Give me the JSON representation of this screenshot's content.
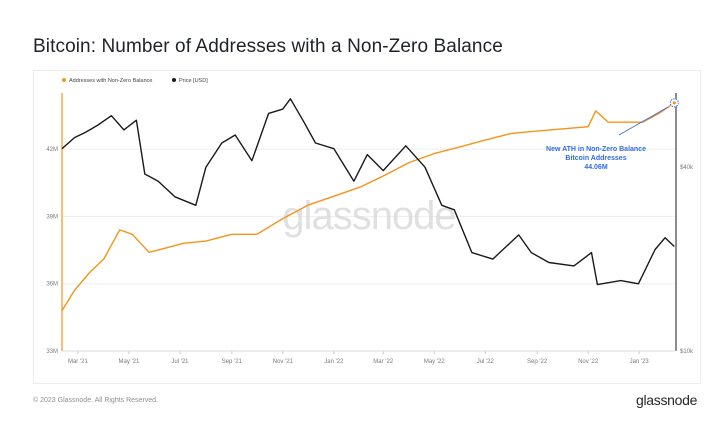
{
  "title": "Bitcoin: Number of Addresses with a Non-Zero Balance",
  "footer": {
    "copyright": "© 2023 Glassnode. All Rights Reserved.",
    "logo": "glassnode"
  },
  "watermark": "glassnode",
  "colors": {
    "addresses": "#f7931a",
    "price": "#1a1a1a",
    "annotation": "#2f6be0",
    "grid": "#ededed",
    "axis_text": "#7a7a7a"
  },
  "chart_data": {
    "type": "line",
    "x_ticks": [
      "Mar '21",
      "May '21",
      "Jul '21",
      "Sep '21",
      "Nov '21",
      "Jan '22",
      "Mar '22",
      "May '22",
      "Jul '22",
      "Sep '22",
      "Nov '22",
      "Jan '23"
    ],
    "y_left": {
      "ticks": [
        "33M",
        "36M",
        "39M",
        "42M"
      ],
      "range": [
        33,
        44.5
      ],
      "unit": "M"
    },
    "y_right": {
      "ticks": [
        "$10k",
        "$40k"
      ],
      "scale": "log",
      "range": [
        10000,
        70000
      ]
    },
    "legend": [
      "Addresses with Non-Zero Balance",
      "Price [USD]"
    ],
    "legend_position": "top-left",
    "grid": true,
    "series": [
      {
        "name": "Addresses with Non-Zero Balance",
        "axis": "left",
        "points": [
          [
            "2021-02-10",
            34.8
          ],
          [
            "2021-02-25",
            35.7
          ],
          [
            "2021-03-15",
            36.5
          ],
          [
            "2021-04-01",
            37.1
          ],
          [
            "2021-04-20",
            38.4
          ],
          [
            "2021-05-05",
            38.2
          ],
          [
            "2021-05-25",
            37.4
          ],
          [
            "2021-06-15",
            37.6
          ],
          [
            "2021-07-05",
            37.8
          ],
          [
            "2021-08-01",
            37.9
          ],
          [
            "2021-09-01",
            38.2
          ],
          [
            "2021-10-01",
            38.2
          ],
          [
            "2021-11-01",
            38.9
          ],
          [
            "2021-12-01",
            39.5
          ],
          [
            "2022-01-01",
            39.9
          ],
          [
            "2022-02-01",
            40.3
          ],
          [
            "2022-03-01",
            40.8
          ],
          [
            "2022-04-01",
            41.4
          ],
          [
            "2022-05-01",
            41.8
          ],
          [
            "2022-06-01",
            42.1
          ],
          [
            "2022-07-01",
            42.4
          ],
          [
            "2022-08-01",
            42.7
          ],
          [
            "2022-09-01",
            42.8
          ],
          [
            "2022-10-01",
            42.9
          ],
          [
            "2022-11-01",
            43.0
          ],
          [
            "2022-11-10",
            43.7
          ],
          [
            "2022-11-25",
            43.2
          ],
          [
            "2022-12-15",
            43.2
          ],
          [
            "2023-01-05",
            43.2
          ],
          [
            "2023-01-25",
            43.6
          ],
          [
            "2023-02-12",
            44.06
          ]
        ]
      },
      {
        "name": "Price [USD]",
        "axis": "right",
        "points": [
          [
            "2021-02-10",
            46000
          ],
          [
            "2021-02-25",
            50000
          ],
          [
            "2021-03-10",
            52000
          ],
          [
            "2021-03-25",
            55000
          ],
          [
            "2021-04-10",
            59000
          ],
          [
            "2021-04-25",
            53000
          ],
          [
            "2021-05-10",
            57000
          ],
          [
            "2021-05-20",
            38000
          ],
          [
            "2021-06-05",
            36000
          ],
          [
            "2021-06-25",
            32000
          ],
          [
            "2021-07-20",
            30000
          ],
          [
            "2021-08-01",
            40000
          ],
          [
            "2021-08-20",
            48000
          ],
          [
            "2021-09-05",
            51000
          ],
          [
            "2021-09-25",
            42000
          ],
          [
            "2021-10-15",
            60000
          ],
          [
            "2021-11-01",
            62000
          ],
          [
            "2021-11-10",
            67000
          ],
          [
            "2021-11-25",
            57000
          ],
          [
            "2021-12-10",
            48000
          ],
          [
            "2022-01-01",
            46000
          ],
          [
            "2022-01-25",
            36000
          ],
          [
            "2022-02-10",
            44000
          ],
          [
            "2022-03-01",
            39000
          ],
          [
            "2022-03-28",
            47000
          ],
          [
            "2022-04-20",
            40000
          ],
          [
            "2022-05-10",
            30000
          ],
          [
            "2022-05-25",
            29000
          ],
          [
            "2022-06-15",
            21000
          ],
          [
            "2022-07-10",
            20000
          ],
          [
            "2022-08-10",
            24000
          ],
          [
            "2022-08-25",
            21000
          ],
          [
            "2022-09-15",
            19500
          ],
          [
            "2022-10-15",
            19000
          ],
          [
            "2022-11-05",
            21000
          ],
          [
            "2022-11-12",
            16500
          ],
          [
            "2022-12-10",
            17000
          ],
          [
            "2022-12-31",
            16600
          ],
          [
            "2023-01-20",
            21500
          ],
          [
            "2023-02-01",
            23500
          ],
          [
            "2023-02-12",
            22000
          ]
        ]
      }
    ],
    "annotation": {
      "lines": [
        "New ATH in Non-Zero Balance",
        "Bitcoin Addresses",
        "44.06M"
      ],
      "value": 44.06
    }
  }
}
